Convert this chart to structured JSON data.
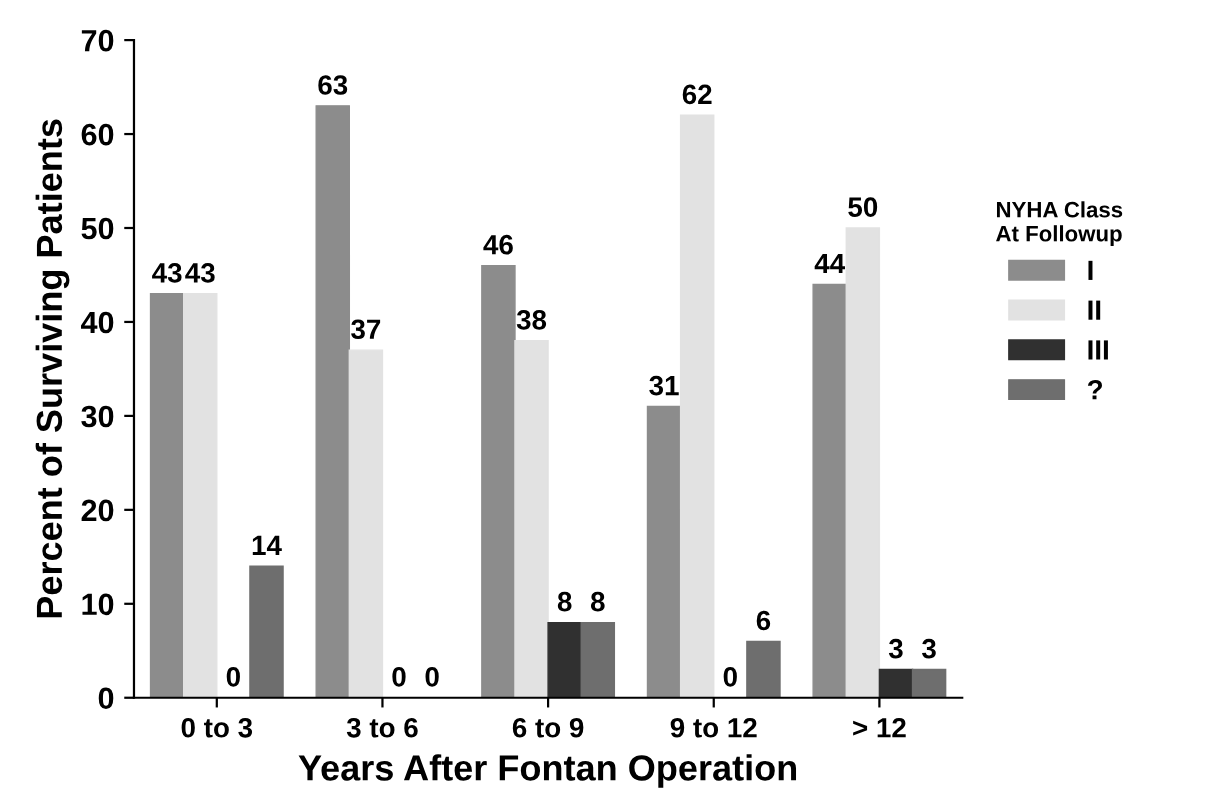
{
  "chart_data": {
    "type": "bar",
    "xlabel": "Years After Fontan Operation",
    "ylabel": "Percent of Surviving Patients",
    "legend_title": "NYHA Class\nAt Followup",
    "categories": [
      "0 to 3",
      "3 to 6",
      "6 to 9",
      "9 to 12",
      "> 12"
    ],
    "series": [
      {
        "name": "I",
        "color": "#8c8c8c",
        "values": [
          43,
          63,
          46,
          31,
          44
        ]
      },
      {
        "name": "II",
        "color": "#e2e2e2",
        "values": [
          43,
          37,
          38,
          62,
          50
        ]
      },
      {
        "name": "III",
        "color": "#303030",
        "values": [
          0,
          0,
          8,
          0,
          3
        ]
      },
      {
        "name": "?",
        "color": "#6e6e6e",
        "values": [
          14,
          0,
          8,
          6,
          3
        ]
      }
    ],
    "ylim": [
      0,
      70
    ],
    "yticks": [
      0,
      10,
      20,
      30,
      40,
      50,
      60,
      70
    ],
    "data_labels": true,
    "legend": "right",
    "grid": false
  }
}
